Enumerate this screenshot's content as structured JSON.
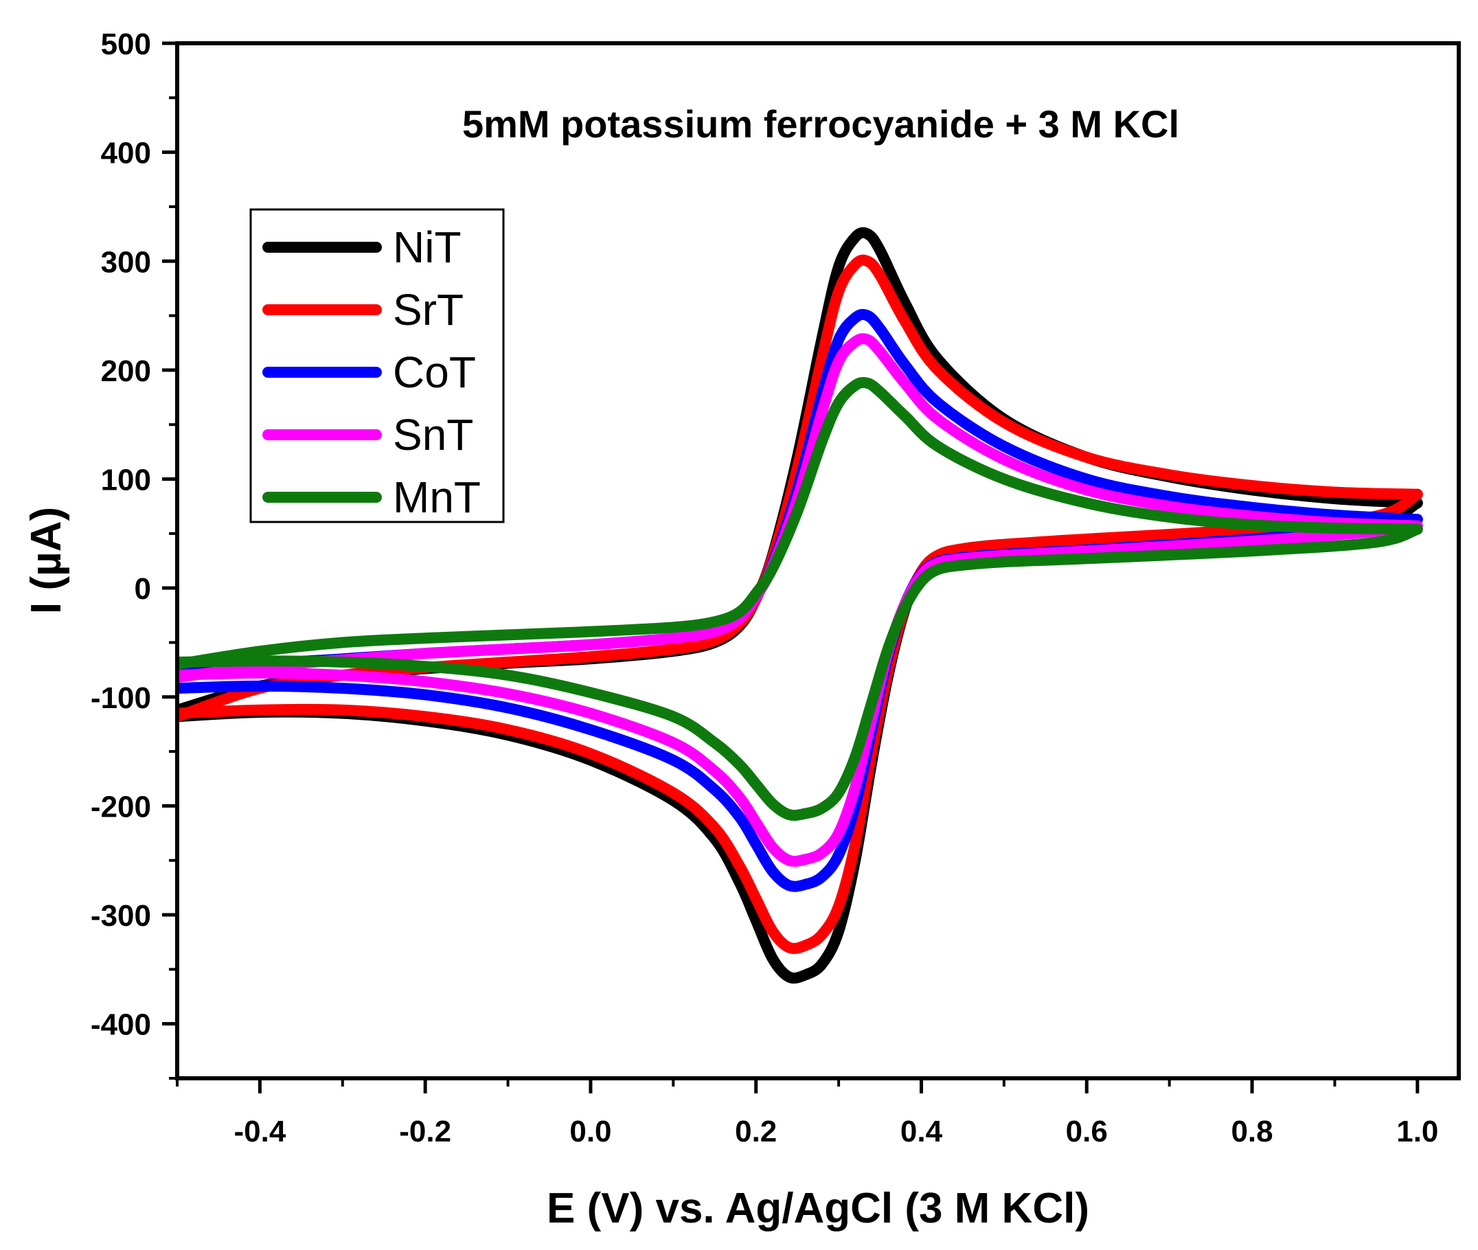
{
  "chart_data": {
    "type": "line",
    "title": "5mM potassium ferrocyanide + 3 M KCl",
    "xlabel": "E (V) vs. Ag/AgCl (3 M KCl)",
    "ylabel": "I (µA)",
    "xlim": [
      -0.5,
      1.05
    ],
    "ylim": [
      -450,
      500
    ],
    "xticks": [
      -0.4,
      -0.2,
      0.0,
      0.2,
      0.4,
      0.6,
      0.8,
      1.0
    ],
    "xtick_labels": [
      "-0.4",
      "-0.2",
      "0.0",
      "0.2",
      "0.4",
      "0.6",
      "0.8",
      "1.0"
    ],
    "yticks": [
      -400,
      -300,
      -200,
      -100,
      0,
      100,
      200,
      300,
      400,
      500
    ],
    "ytick_labels": [
      "-400",
      "-300",
      "-200",
      "-100",
      "0",
      "100",
      "200",
      "300",
      "400",
      "500"
    ],
    "legend_position": "upper-left",
    "series": [
      {
        "name": "NiT",
        "color": "#000000",
        "forward": [
          [
            -0.5,
            -112
          ],
          [
            -0.4,
            -90
          ],
          [
            -0.3,
            -80
          ],
          [
            -0.2,
            -74
          ],
          [
            -0.1,
            -69
          ],
          [
            0.0,
            -65
          ],
          [
            0.1,
            -58
          ],
          [
            0.15,
            -50
          ],
          [
            0.18,
            -35
          ],
          [
            0.2,
            -10
          ],
          [
            0.22,
            30
          ],
          [
            0.25,
            120
          ],
          [
            0.28,
            230
          ],
          [
            0.3,
            295
          ],
          [
            0.32,
            322
          ],
          [
            0.335,
            325
          ],
          [
            0.35,
            310
          ],
          [
            0.38,
            262
          ],
          [
            0.42,
            210
          ],
          [
            0.5,
            155
          ],
          [
            0.6,
            120
          ],
          [
            0.7,
            102
          ],
          [
            0.8,
            90
          ],
          [
            0.9,
            82
          ],
          [
            1.0,
            78
          ]
        ],
        "reverse": [
          [
            1.0,
            78
          ],
          [
            0.95,
            60
          ],
          [
            0.8,
            52
          ],
          [
            0.6,
            44
          ],
          [
            0.5,
            40
          ],
          [
            0.45,
            36
          ],
          [
            0.42,
            30
          ],
          [
            0.4,
            15
          ],
          [
            0.38,
            -20
          ],
          [
            0.36,
            -80
          ],
          [
            0.34,
            -160
          ],
          [
            0.32,
            -250
          ],
          [
            0.3,
            -315
          ],
          [
            0.28,
            -345
          ],
          [
            0.26,
            -355
          ],
          [
            0.24,
            -357
          ],
          [
            0.22,
            -340
          ],
          [
            0.2,
            -305
          ],
          [
            0.18,
            -270
          ],
          [
            0.15,
            -230
          ],
          [
            0.1,
            -195
          ],
          [
            0.0,
            -158
          ],
          [
            -0.1,
            -135
          ],
          [
            -0.2,
            -122
          ],
          [
            -0.3,
            -115
          ],
          [
            -0.4,
            -114
          ],
          [
            -0.5,
            -118
          ]
        ]
      },
      {
        "name": "SrT",
        "color": "#ff0000",
        "forward": [
          [
            -0.5,
            -118
          ],
          [
            -0.4,
            -92
          ],
          [
            -0.3,
            -80
          ],
          [
            -0.2,
            -73
          ],
          [
            -0.1,
            -68
          ],
          [
            0.0,
            -63
          ],
          [
            0.1,
            -56
          ],
          [
            0.15,
            -48
          ],
          [
            0.18,
            -33
          ],
          [
            0.2,
            -10
          ],
          [
            0.22,
            28
          ],
          [
            0.25,
            110
          ],
          [
            0.28,
            212
          ],
          [
            0.3,
            272
          ],
          [
            0.32,
            297
          ],
          [
            0.335,
            300
          ],
          [
            0.35,
            287
          ],
          [
            0.38,
            245
          ],
          [
            0.42,
            200
          ],
          [
            0.5,
            152
          ],
          [
            0.6,
            120
          ],
          [
            0.7,
            104
          ],
          [
            0.8,
            94
          ],
          [
            0.9,
            88
          ],
          [
            1.0,
            86
          ]
        ],
        "reverse": [
          [
            1.0,
            86
          ],
          [
            0.95,
            66
          ],
          [
            0.8,
            54
          ],
          [
            0.6,
            45
          ],
          [
            0.5,
            40
          ],
          [
            0.45,
            36
          ],
          [
            0.42,
            30
          ],
          [
            0.4,
            15
          ],
          [
            0.38,
            -18
          ],
          [
            0.36,
            -75
          ],
          [
            0.34,
            -150
          ],
          [
            0.32,
            -235
          ],
          [
            0.3,
            -292
          ],
          [
            0.28,
            -318
          ],
          [
            0.26,
            -328
          ],
          [
            0.24,
            -330
          ],
          [
            0.22,
            -315
          ],
          [
            0.2,
            -285
          ],
          [
            0.18,
            -255
          ],
          [
            0.15,
            -220
          ],
          [
            0.1,
            -188
          ],
          [
            0.0,
            -152
          ],
          [
            -0.1,
            -130
          ],
          [
            -0.2,
            -118
          ],
          [
            -0.3,
            -112
          ],
          [
            -0.4,
            -112
          ],
          [
            -0.5,
            -115
          ]
        ]
      },
      {
        "name": "CoT",
        "color": "#0000ff",
        "forward": [
          [
            -0.5,
            -78
          ],
          [
            -0.4,
            -70
          ],
          [
            -0.3,
            -65
          ],
          [
            -0.2,
            -60
          ],
          [
            -0.1,
            -56
          ],
          [
            0.0,
            -52
          ],
          [
            0.1,
            -46
          ],
          [
            0.15,
            -40
          ],
          [
            0.18,
            -28
          ],
          [
            0.2,
            -8
          ],
          [
            0.22,
            22
          ],
          [
            0.25,
            90
          ],
          [
            0.28,
            178
          ],
          [
            0.3,
            228
          ],
          [
            0.32,
            248
          ],
          [
            0.335,
            250
          ],
          [
            0.35,
            238
          ],
          [
            0.38,
            205
          ],
          [
            0.42,
            170
          ],
          [
            0.5,
            130
          ],
          [
            0.6,
            100
          ],
          [
            0.7,
            84
          ],
          [
            0.8,
            74
          ],
          [
            0.9,
            67
          ],
          [
            1.0,
            63
          ]
        ],
        "reverse": [
          [
            1.0,
            63
          ],
          [
            0.95,
            55
          ],
          [
            0.8,
            45
          ],
          [
            0.6,
            35
          ],
          [
            0.5,
            31
          ],
          [
            0.45,
            28
          ],
          [
            0.42,
            24
          ],
          [
            0.4,
            13
          ],
          [
            0.38,
            -15
          ],
          [
            0.36,
            -62
          ],
          [
            0.34,
            -130
          ],
          [
            0.32,
            -200
          ],
          [
            0.3,
            -245
          ],
          [
            0.28,
            -265
          ],
          [
            0.26,
            -272
          ],
          [
            0.24,
            -273
          ],
          [
            0.22,
            -260
          ],
          [
            0.2,
            -235
          ],
          [
            0.18,
            -210
          ],
          [
            0.15,
            -185
          ],
          [
            0.1,
            -158
          ],
          [
            0.0,
            -130
          ],
          [
            -0.1,
            -110
          ],
          [
            -0.2,
            -98
          ],
          [
            -0.3,
            -92
          ],
          [
            -0.4,
            -90
          ],
          [
            -0.5,
            -92
          ]
        ]
      },
      {
        "name": "SnT",
        "color": "#ff00ff",
        "forward": [
          [
            -0.5,
            -82
          ],
          [
            -0.4,
            -72
          ],
          [
            -0.3,
            -66
          ],
          [
            -0.2,
            -60
          ],
          [
            -0.1,
            -56
          ],
          [
            0.0,
            -52
          ],
          [
            0.1,
            -46
          ],
          [
            0.15,
            -40
          ],
          [
            0.18,
            -28
          ],
          [
            0.2,
            -8
          ],
          [
            0.22,
            20
          ],
          [
            0.25,
            82
          ],
          [
            0.28,
            162
          ],
          [
            0.3,
            208
          ],
          [
            0.32,
            226
          ],
          [
            0.335,
            228
          ],
          [
            0.35,
            217
          ],
          [
            0.38,
            188
          ],
          [
            0.42,
            155
          ],
          [
            0.5,
            118
          ],
          [
            0.6,
            90
          ],
          [
            0.7,
            75
          ],
          [
            0.8,
            66
          ],
          [
            0.9,
            60
          ],
          [
            1.0,
            57
          ]
        ],
        "reverse": [
          [
            1.0,
            57
          ],
          [
            0.95,
            52
          ],
          [
            0.8,
            43
          ],
          [
            0.6,
            34
          ],
          [
            0.5,
            30
          ],
          [
            0.45,
            27
          ],
          [
            0.42,
            23
          ],
          [
            0.4,
            12
          ],
          [
            0.38,
            -15
          ],
          [
            0.36,
            -58
          ],
          [
            0.34,
            -120
          ],
          [
            0.32,
            -183
          ],
          [
            0.3,
            -225
          ],
          [
            0.28,
            -243
          ],
          [
            0.26,
            -249
          ],
          [
            0.24,
            -250
          ],
          [
            0.22,
            -238
          ],
          [
            0.2,
            -215
          ],
          [
            0.18,
            -192
          ],
          [
            0.15,
            -168
          ],
          [
            0.1,
            -142
          ],
          [
            0.0,
            -115
          ],
          [
            -0.1,
            -97
          ],
          [
            -0.2,
            -86
          ],
          [
            -0.3,
            -80
          ],
          [
            -0.4,
            -78
          ],
          [
            -0.5,
            -80
          ]
        ]
      },
      {
        "name": "MnT",
        "color": "#0e7a0e",
        "forward": [
          [
            -0.5,
            -70
          ],
          [
            -0.4,
            -58
          ],
          [
            -0.3,
            -50
          ],
          [
            -0.2,
            -46
          ],
          [
            -0.1,
            -43
          ],
          [
            0.0,
            -40
          ],
          [
            0.1,
            -36
          ],
          [
            0.15,
            -31
          ],
          [
            0.18,
            -22
          ],
          [
            0.2,
            -5
          ],
          [
            0.22,
            18
          ],
          [
            0.25,
            70
          ],
          [
            0.28,
            135
          ],
          [
            0.3,
            170
          ],
          [
            0.32,
            186
          ],
          [
            0.335,
            188
          ],
          [
            0.35,
            180
          ],
          [
            0.38,
            158
          ],
          [
            0.42,
            130
          ],
          [
            0.5,
            100
          ],
          [
            0.6,
            78
          ],
          [
            0.7,
            65
          ],
          [
            0.8,
            58
          ],
          [
            0.9,
            55
          ],
          [
            1.0,
            54
          ]
        ],
        "reverse": [
          [
            1.0,
            54
          ],
          [
            0.95,
            42
          ],
          [
            0.8,
            34
          ],
          [
            0.6,
            27
          ],
          [
            0.5,
            24
          ],
          [
            0.45,
            21
          ],
          [
            0.42,
            17
          ],
          [
            0.4,
            6
          ],
          [
            0.38,
            -18
          ],
          [
            0.36,
            -55
          ],
          [
            0.34,
            -105
          ],
          [
            0.32,
            -155
          ],
          [
            0.3,
            -188
          ],
          [
            0.28,
            -202
          ],
          [
            0.26,
            -207
          ],
          [
            0.24,
            -208
          ],
          [
            0.22,
            -198
          ],
          [
            0.2,
            -180
          ],
          [
            0.18,
            -162
          ],
          [
            0.15,
            -142
          ],
          [
            0.1,
            -118
          ],
          [
            0.0,
            -96
          ],
          [
            -0.1,
            -80
          ],
          [
            -0.2,
            -72
          ],
          [
            -0.3,
            -68
          ],
          [
            -0.4,
            -67
          ],
          [
            -0.5,
            -68
          ]
        ]
      }
    ]
  }
}
